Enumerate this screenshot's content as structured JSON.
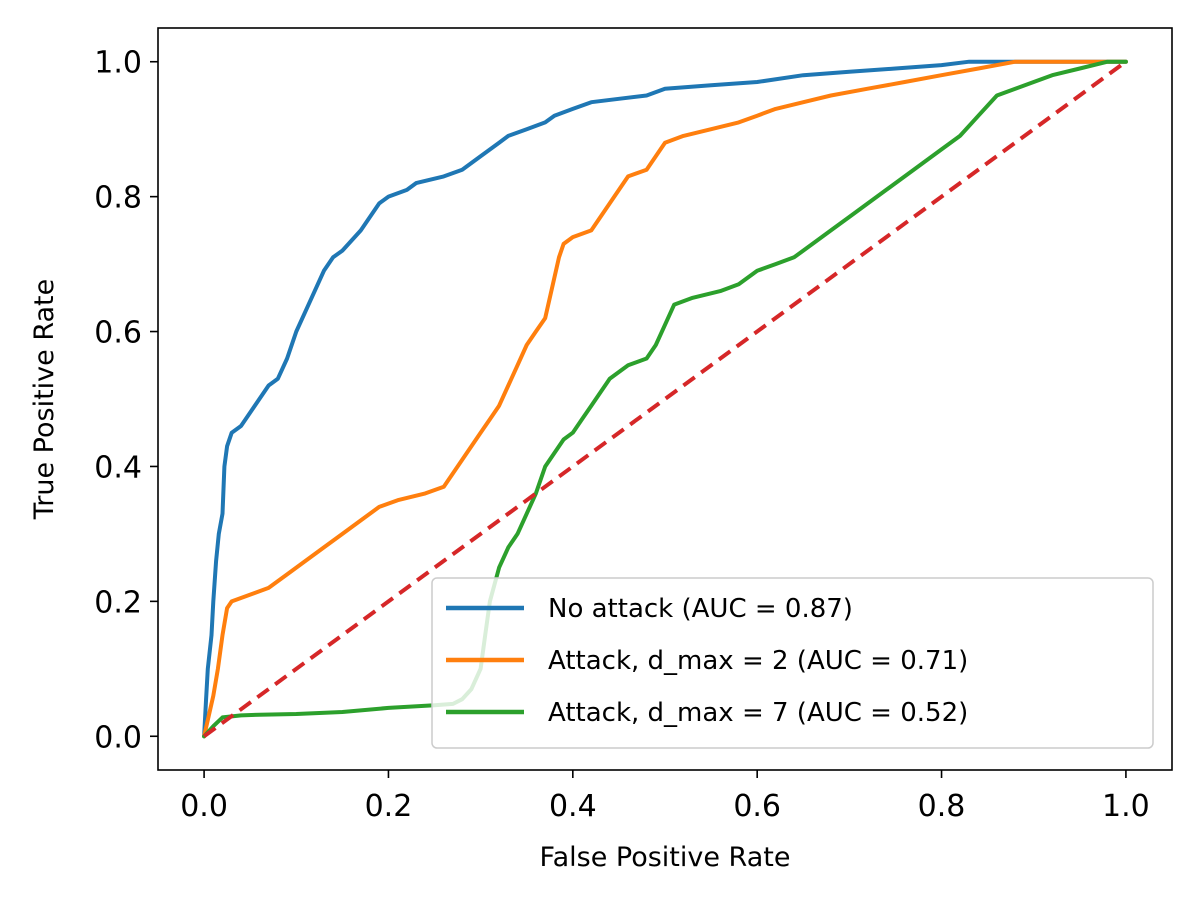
{
  "chart_data": {
    "type": "line",
    "xlabel": "False Positive Rate",
    "ylabel": "True Positive Rate",
    "xlim": [
      -0.05,
      1.05
    ],
    "ylim": [
      -0.05,
      1.05
    ],
    "xticks": [
      "0.0",
      "0.2",
      "0.4",
      "0.6",
      "0.8",
      "1.0"
    ],
    "yticks": [
      "0.0",
      "0.2",
      "0.4",
      "0.6",
      "0.8",
      "1.0"
    ],
    "grid": false,
    "legend_position": "lower-right",
    "series": [
      {
        "name": "No attack (AUC = 0.87)",
        "color": "#1f77b4",
        "style": "solid",
        "points": [
          [
            0,
            0
          ],
          [
            0.002,
            0.05
          ],
          [
            0.004,
            0.1
          ],
          [
            0.008,
            0.15
          ],
          [
            0.01,
            0.2
          ],
          [
            0.013,
            0.26
          ],
          [
            0.016,
            0.3
          ],
          [
            0.02,
            0.33
          ],
          [
            0.022,
            0.4
          ],
          [
            0.025,
            0.43
          ],
          [
            0.03,
            0.45
          ],
          [
            0.04,
            0.46
          ],
          [
            0.05,
            0.48
          ],
          [
            0.06,
            0.5
          ],
          [
            0.07,
            0.52
          ],
          [
            0.08,
            0.53
          ],
          [
            0.09,
            0.56
          ],
          [
            0.1,
            0.6
          ],
          [
            0.11,
            0.63
          ],
          [
            0.12,
            0.66
          ],
          [
            0.13,
            0.69
          ],
          [
            0.14,
            0.71
          ],
          [
            0.15,
            0.72
          ],
          [
            0.17,
            0.75
          ],
          [
            0.18,
            0.77
          ],
          [
            0.19,
            0.79
          ],
          [
            0.2,
            0.8
          ],
          [
            0.22,
            0.81
          ],
          [
            0.23,
            0.82
          ],
          [
            0.26,
            0.83
          ],
          [
            0.28,
            0.84
          ],
          [
            0.3,
            0.86
          ],
          [
            0.32,
            0.88
          ],
          [
            0.33,
            0.89
          ],
          [
            0.35,
            0.9
          ],
          [
            0.37,
            0.91
          ],
          [
            0.38,
            0.92
          ],
          [
            0.4,
            0.93
          ],
          [
            0.42,
            0.94
          ],
          [
            0.45,
            0.945
          ],
          [
            0.48,
            0.95
          ],
          [
            0.5,
            0.96
          ],
          [
            0.55,
            0.965
          ],
          [
            0.6,
            0.97
          ],
          [
            0.65,
            0.98
          ],
          [
            0.7,
            0.985
          ],
          [
            0.75,
            0.99
          ],
          [
            0.8,
            0.995
          ],
          [
            0.83,
            1.0
          ],
          [
            1.0,
            1.0
          ]
        ]
      },
      {
        "name": "Attack, d_max = 2 (AUC = 0.71)",
        "color": "#ff7f0e",
        "style": "solid",
        "points": [
          [
            0,
            0
          ],
          [
            0.005,
            0.03
          ],
          [
            0.01,
            0.06
          ],
          [
            0.015,
            0.1
          ],
          [
            0.02,
            0.15
          ],
          [
            0.025,
            0.19
          ],
          [
            0.03,
            0.2
          ],
          [
            0.05,
            0.21
          ],
          [
            0.07,
            0.22
          ],
          [
            0.09,
            0.24
          ],
          [
            0.11,
            0.26
          ],
          [
            0.13,
            0.28
          ],
          [
            0.15,
            0.3
          ],
          [
            0.17,
            0.32
          ],
          [
            0.19,
            0.34
          ],
          [
            0.21,
            0.35
          ],
          [
            0.24,
            0.36
          ],
          [
            0.26,
            0.37
          ],
          [
            0.27,
            0.39
          ],
          [
            0.28,
            0.41
          ],
          [
            0.29,
            0.43
          ],
          [
            0.3,
            0.45
          ],
          [
            0.31,
            0.47
          ],
          [
            0.32,
            0.49
          ],
          [
            0.33,
            0.52
          ],
          [
            0.34,
            0.55
          ],
          [
            0.35,
            0.58
          ],
          [
            0.36,
            0.6
          ],
          [
            0.37,
            0.62
          ],
          [
            0.375,
            0.65
          ],
          [
            0.38,
            0.68
          ],
          [
            0.385,
            0.71
          ],
          [
            0.39,
            0.73
          ],
          [
            0.4,
            0.74
          ],
          [
            0.42,
            0.75
          ],
          [
            0.43,
            0.77
          ],
          [
            0.44,
            0.79
          ],
          [
            0.45,
            0.81
          ],
          [
            0.46,
            0.83
          ],
          [
            0.48,
            0.84
          ],
          [
            0.49,
            0.86
          ],
          [
            0.5,
            0.88
          ],
          [
            0.52,
            0.89
          ],
          [
            0.55,
            0.9
          ],
          [
            0.58,
            0.91
          ],
          [
            0.6,
            0.92
          ],
          [
            0.62,
            0.93
          ],
          [
            0.65,
            0.94
          ],
          [
            0.68,
            0.95
          ],
          [
            0.72,
            0.96
          ],
          [
            0.76,
            0.97
          ],
          [
            0.8,
            0.98
          ],
          [
            0.84,
            0.99
          ],
          [
            0.88,
            1.0
          ],
          [
            1.0,
            1.0
          ]
        ]
      },
      {
        "name": "Attack, d_max = 7 (AUC = 0.52)",
        "color": "#2ca02c",
        "style": "solid",
        "points": [
          [
            0,
            0
          ],
          [
            0.01,
            0.015
          ],
          [
            0.02,
            0.028
          ],
          [
            0.04,
            0.031
          ],
          [
            0.06,
            0.032
          ],
          [
            0.1,
            0.033
          ],
          [
            0.15,
            0.036
          ],
          [
            0.2,
            0.042
          ],
          [
            0.25,
            0.046
          ],
          [
            0.27,
            0.048
          ],
          [
            0.28,
            0.055
          ],
          [
            0.29,
            0.07
          ],
          [
            0.3,
            0.1
          ],
          [
            0.305,
            0.15
          ],
          [
            0.31,
            0.2
          ],
          [
            0.32,
            0.25
          ],
          [
            0.33,
            0.28
          ],
          [
            0.34,
            0.3
          ],
          [
            0.35,
            0.33
          ],
          [
            0.36,
            0.36
          ],
          [
            0.37,
            0.4
          ],
          [
            0.38,
            0.42
          ],
          [
            0.39,
            0.44
          ],
          [
            0.4,
            0.45
          ],
          [
            0.41,
            0.47
          ],
          [
            0.42,
            0.49
          ],
          [
            0.43,
            0.51
          ],
          [
            0.44,
            0.53
          ],
          [
            0.46,
            0.55
          ],
          [
            0.48,
            0.56
          ],
          [
            0.49,
            0.58
          ],
          [
            0.5,
            0.61
          ],
          [
            0.51,
            0.64
          ],
          [
            0.53,
            0.65
          ],
          [
            0.56,
            0.66
          ],
          [
            0.58,
            0.67
          ],
          [
            0.6,
            0.69
          ],
          [
            0.62,
            0.7
          ],
          [
            0.64,
            0.71
          ],
          [
            0.66,
            0.73
          ],
          [
            0.68,
            0.75
          ],
          [
            0.7,
            0.77
          ],
          [
            0.72,
            0.79
          ],
          [
            0.74,
            0.81
          ],
          [
            0.76,
            0.83
          ],
          [
            0.78,
            0.85
          ],
          [
            0.8,
            0.87
          ],
          [
            0.82,
            0.89
          ],
          [
            0.84,
            0.92
          ],
          [
            0.86,
            0.95
          ],
          [
            0.88,
            0.96
          ],
          [
            0.9,
            0.97
          ],
          [
            0.92,
            0.98
          ],
          [
            0.95,
            0.99
          ],
          [
            0.98,
            1.0
          ],
          [
            1.0,
            1.0
          ]
        ]
      },
      {
        "color": "#d62728",
        "style": "dashed",
        "points": [
          [
            0,
            0
          ],
          [
            1,
            1
          ]
        ]
      }
    ]
  }
}
